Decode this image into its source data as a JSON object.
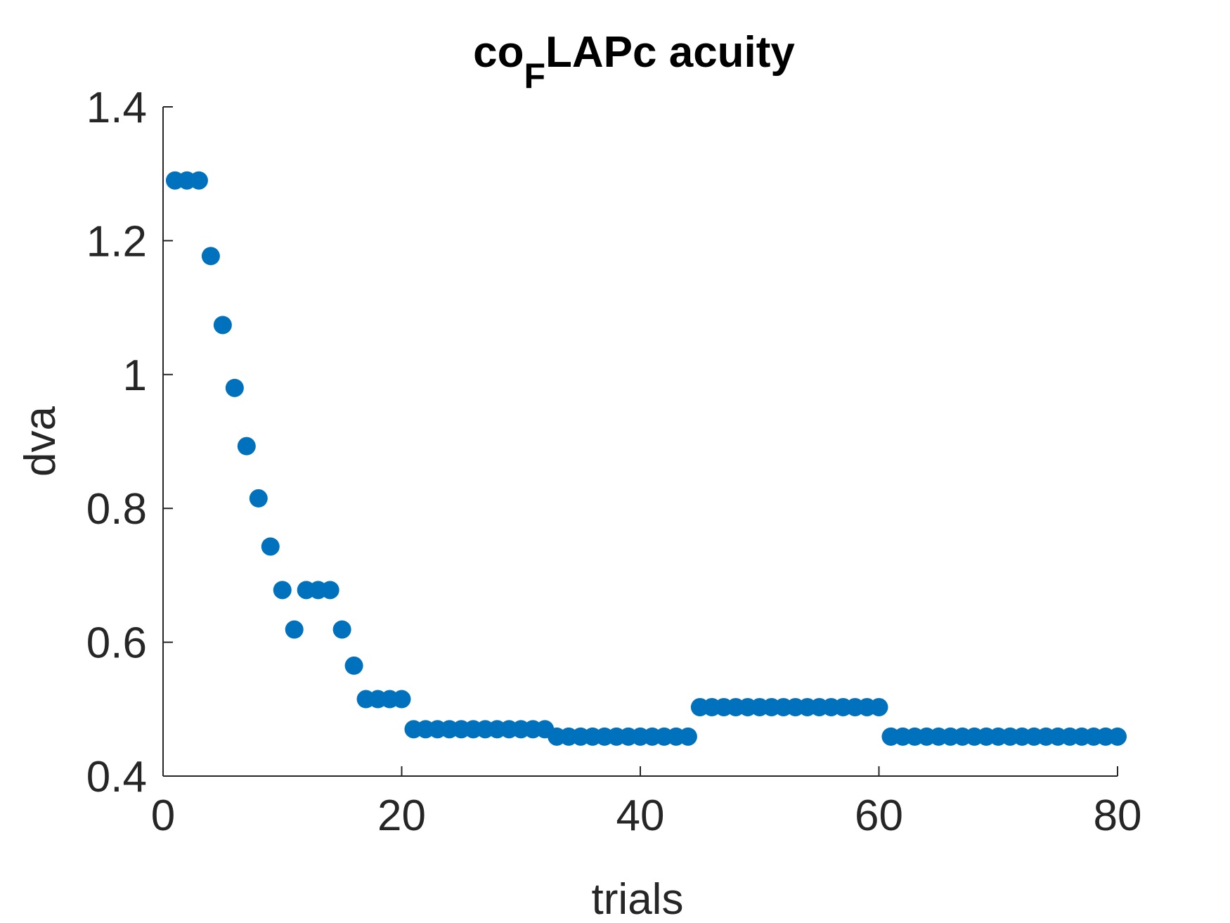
{
  "chart_data": {
    "type": "scatter",
    "title": {
      "prefix": "co",
      "subscript": "F",
      "suffix": "LAPc acuity"
    },
    "xlabel": "trials",
    "ylabel": "dva",
    "xlim": [
      0,
      80
    ],
    "ylim": [
      0.4,
      1.4
    ],
    "xticks": [
      0,
      20,
      40,
      60,
      80
    ],
    "xtick_labels": [
      "0",
      "20",
      "40",
      "60",
      "80"
    ],
    "yticks": [
      0.4,
      0.6,
      0.8,
      1.0,
      1.2,
      1.4
    ],
    "ytick_labels": [
      "0.4",
      "0.6",
      "0.8",
      "1",
      "1.2",
      "1.4"
    ],
    "grid": false,
    "marker_color": "#0072BD",
    "axis_color": "#262626",
    "series": [
      {
        "x": [
          1,
          2,
          3,
          4,
          5,
          6,
          7,
          8,
          9,
          10,
          11,
          12,
          13,
          14,
          15,
          16,
          17,
          18,
          19,
          20,
          21,
          22,
          23,
          24,
          25,
          26,
          27,
          28,
          29,
          30,
          31,
          32,
          33,
          34,
          35,
          36,
          37,
          38,
          39,
          40,
          41,
          42,
          43,
          44,
          45,
          46,
          47,
          48,
          49,
          50,
          51,
          52,
          53,
          54,
          55,
          56,
          57,
          58,
          59,
          60,
          61,
          62,
          63,
          64,
          65,
          66,
          67,
          68,
          69,
          70,
          71,
          72,
          73,
          74,
          75,
          76,
          77,
          78,
          79,
          80
        ],
        "y": [
          1.29,
          1.29,
          1.29,
          1.177,
          1.074,
          0.98,
          0.893,
          0.815,
          0.743,
          0.678,
          0.619,
          0.678,
          0.678,
          0.678,
          0.619,
          0.565,
          0.515,
          0.515,
          0.515,
          0.515,
          0.47,
          0.47,
          0.47,
          0.47,
          0.47,
          0.47,
          0.47,
          0.47,
          0.47,
          0.47,
          0.47,
          0.47,
          0.459,
          0.459,
          0.459,
          0.459,
          0.459,
          0.459,
          0.459,
          0.459,
          0.459,
          0.459,
          0.459,
          0.459,
          0.503,
          0.503,
          0.503,
          0.503,
          0.503,
          0.503,
          0.503,
          0.503,
          0.503,
          0.503,
          0.503,
          0.503,
          0.503,
          0.503,
          0.503,
          0.503,
          0.459,
          0.459,
          0.459,
          0.459,
          0.459,
          0.459,
          0.459,
          0.459,
          0.459,
          0.459,
          0.459,
          0.459,
          0.459,
          0.459,
          0.459,
          0.459,
          0.459,
          0.459,
          0.459,
          0.459
        ]
      }
    ]
  }
}
